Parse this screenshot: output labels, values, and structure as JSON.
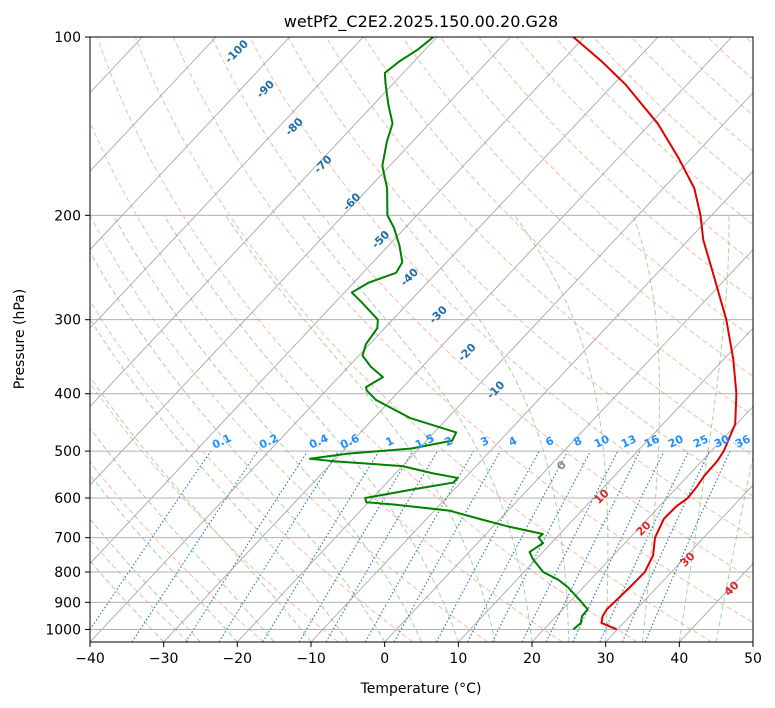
{
  "chart_data": {
    "type": "line",
    "subtype": "skew-t log-p",
    "title": "wetPf2_C2E2.2025.150.00.20.G28",
    "xlabel": "Temperature (°C)",
    "ylabel": "Pressure (hPa)",
    "xlim": [
      -40,
      50
    ],
    "ylim": [
      1050,
      100
    ],
    "y_scale": "log",
    "grid": true,
    "legend": "none",
    "x_ticks": [
      -40,
      -30,
      -20,
      -10,
      0,
      10,
      20,
      30,
      40,
      50
    ],
    "x_tick_labels": [
      "−40",
      "−30",
      "−20",
      "−10",
      "0",
      "10",
      "20",
      "30",
      "40",
      "50"
    ],
    "y_ticks": [
      1000,
      900,
      800,
      700,
      600,
      500,
      400,
      300,
      200,
      100
    ],
    "y_tick_labels": [
      "1000",
      "900",
      "800",
      "700",
      "600",
      "500",
      "400",
      "300",
      "200",
      "100"
    ],
    "series": [
      {
        "color": "#e00000",
        "points": [
          [
            1000,
            29.9
          ],
          [
            975,
            27.0
          ],
          [
            950,
            26.3
          ],
          [
            925,
            26.0
          ],
          [
            900,
            26.1
          ],
          [
            850,
            26.3
          ],
          [
            800,
            26.4
          ],
          [
            750,
            25.4
          ],
          [
            700,
            23.4
          ],
          [
            650,
            22.2
          ],
          [
            620,
            22.3
          ],
          [
            600,
            22.8
          ],
          [
            575,
            22.6
          ],
          [
            550,
            22.2
          ],
          [
            520,
            22.1
          ],
          [
            500,
            21.7
          ],
          [
            450,
            19.8
          ],
          [
            400,
            16.1
          ],
          [
            350,
            11.3
          ],
          [
            300,
            5.3
          ],
          [
            250,
            -2.5
          ],
          [
            220,
            -8.0
          ],
          [
            200,
            -11.5
          ],
          [
            180,
            -15.8
          ],
          [
            160,
            -21.8
          ],
          [
            140,
            -29.0
          ],
          [
            120,
            -38.5
          ],
          [
            110,
            -44.5
          ],
          [
            100,
            -51.5
          ]
        ]
      },
      {
        "color": "#008000",
        "points": [
          [
            1000,
            24.0
          ],
          [
            975,
            24.2
          ],
          [
            950,
            23.5
          ],
          [
            925,
            23.4
          ],
          [
            900,
            21.7
          ],
          [
            850,
            18.0
          ],
          [
            825,
            15.7
          ],
          [
            800,
            12.6
          ],
          [
            760,
            9.5
          ],
          [
            740,
            8.2
          ],
          [
            715,
            8.9
          ],
          [
            700,
            7.6
          ],
          [
            690,
            7.7
          ],
          [
            670,
            2.0
          ],
          [
            650,
            -3.0
          ],
          [
            630,
            -8.0
          ],
          [
            615,
            -16.5
          ],
          [
            610,
            -20.3
          ],
          [
            600,
            -21.0
          ],
          [
            580,
            -15.5
          ],
          [
            565,
            -11.0
          ],
          [
            555,
            -11.0
          ],
          [
            545,
            -15.0
          ],
          [
            530,
            -20.0
          ],
          [
            520,
            -30.0
          ],
          [
            515,
            -33.5
          ],
          [
            505,
            -29.0
          ],
          [
            495,
            -21.0
          ],
          [
            480,
            -16.5
          ],
          [
            465,
            -17.0
          ],
          [
            440,
            -25.0
          ],
          [
            410,
            -32.0
          ],
          [
            395,
            -34.5
          ],
          [
            390,
            -35.0
          ],
          [
            375,
            -34.0
          ],
          [
            360,
            -37.0
          ],
          [
            345,
            -39.5
          ],
          [
            330,
            -40.5
          ],
          [
            310,
            -41.0
          ],
          [
            300,
            -42.0
          ],
          [
            280,
            -46.5
          ],
          [
            270,
            -49.0
          ],
          [
            260,
            -48.0
          ],
          [
            250,
            -45.5
          ],
          [
            240,
            -46.0
          ],
          [
            225,
            -48.5
          ],
          [
            210,
            -51.5
          ],
          [
            200,
            -54.0
          ],
          [
            180,
            -57.5
          ],
          [
            165,
            -61.0
          ],
          [
            150,
            -63.5
          ],
          [
            140,
            -65.0
          ],
          [
            130,
            -68.0
          ],
          [
            120,
            -71.0
          ],
          [
            115,
            -72.5
          ],
          [
            110,
            -72.0
          ],
          [
            105,
            -71.0
          ],
          [
            100,
            -70.5
          ]
        ]
      }
    ],
    "dry_adiabat_labels": [
      "-100",
      "-90",
      "-80",
      "-70",
      "-60",
      "-50",
      "-40",
      "-30",
      "-20",
      "-10",
      "0",
      "10",
      "20",
      "30",
      "40"
    ],
    "mixing_ratio_labels": [
      "0.1",
      "0.2",
      "0.4",
      "0.6",
      "1",
      "1.5",
      "2",
      "3",
      "4",
      "6",
      "8",
      "10",
      "13",
      "16",
      "20",
      "25",
      "30",
      "36"
    ],
    "colors": {
      "temperature": "#e00000",
      "dewpoint": "#008000",
      "dry_adiabat": "#f4a582",
      "moist_adiabat": "#8fc98f",
      "mixing_ratio": "#1f77b4",
      "isotherm": "#999999",
      "label_cold": "#1f6ea8",
      "label_warm": "#d62728",
      "mixing_label": "#1e90ff"
    }
  }
}
